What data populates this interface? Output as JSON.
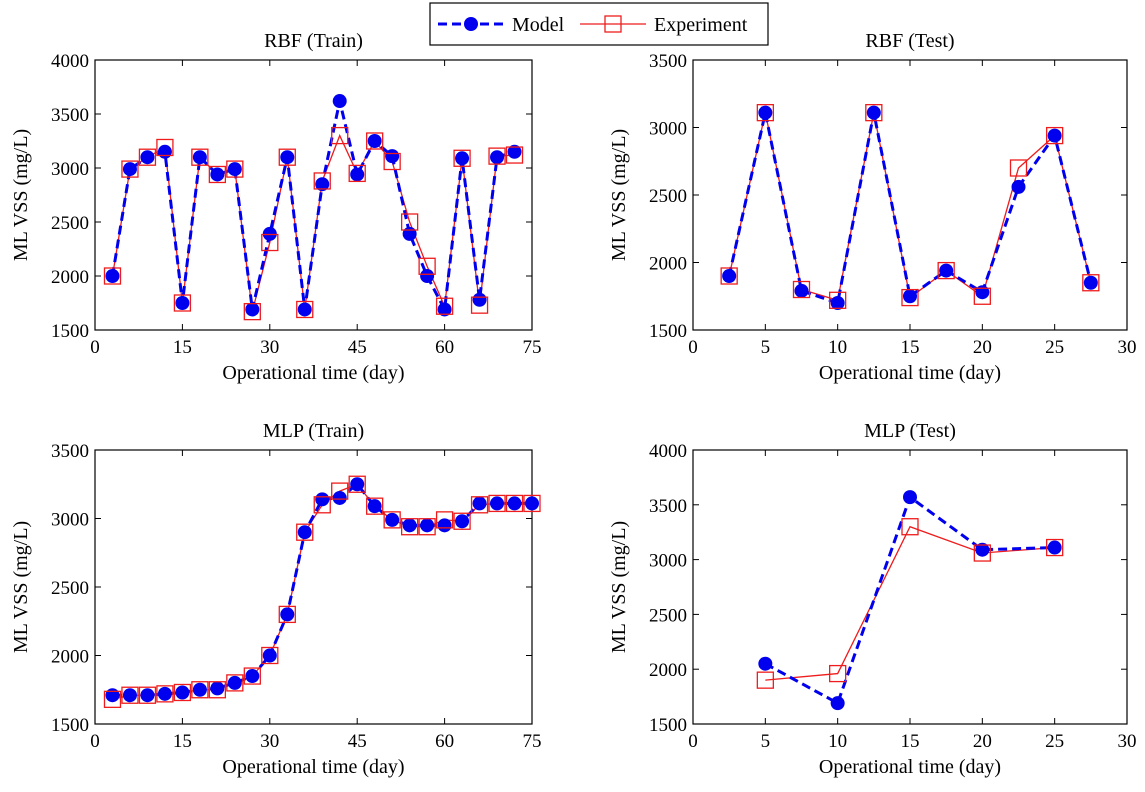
{
  "legend": {
    "entries": [
      {
        "label": "Model",
        "color": "#0000ee",
        "marker": "filled-circle",
        "line": "dashed"
      },
      {
        "label": "Experiment",
        "color": "#ee1c1c",
        "marker": "open-square",
        "line": "solid"
      }
    ]
  },
  "chart_data": [
    {
      "type": "line",
      "title": "RBF (Train)",
      "xlabel": "Operational time (day)",
      "ylabel": "ML VSS (mg/L)",
      "xlim": [
        0,
        75
      ],
      "ylim": [
        1500,
        4000
      ],
      "xticks": [
        0,
        15,
        30,
        45,
        60,
        75
      ],
      "yticks": [
        1500,
        2000,
        2500,
        3000,
        3500,
        4000
      ],
      "grid": false,
      "x": [
        3,
        6,
        9,
        12,
        15,
        18,
        21,
        24,
        27,
        30,
        33,
        36,
        39,
        42,
        45,
        48,
        51,
        54,
        57,
        60,
        63,
        66,
        69,
        72
      ],
      "series": [
        {
          "name": "Model",
          "values": [
            2000,
            2990,
            3100,
            3150,
            1750,
            3100,
            2940,
            2990,
            1690,
            2390,
            3100,
            1690,
            2850,
            3620,
            2940,
            3250,
            3110,
            2390,
            2000,
            1690,
            3090,
            1780,
            3100,
            3150
          ]
        },
        {
          "name": "Experiment",
          "values": [
            2000,
            2990,
            3100,
            3190,
            1750,
            3100,
            2940,
            2990,
            1670,
            2310,
            3100,
            1690,
            2880,
            3300,
            2950,
            3250,
            3060,
            2500,
            2090,
            1720,
            3090,
            1730,
            3110,
            3120
          ]
        }
      ]
    },
    {
      "type": "line",
      "title": "RBF (Test)",
      "xlabel": "Operational time (day)",
      "ylabel": "ML VSS (mg/L)",
      "xlim": [
        0,
        30
      ],
      "ylim": [
        1500,
        3500
      ],
      "xticks": [
        0,
        5,
        10,
        15,
        20,
        25,
        30
      ],
      "yticks": [
        1500,
        2000,
        2500,
        3000,
        3500
      ],
      "grid": false,
      "x": [
        2.5,
        5,
        7.5,
        10,
        12.5,
        15,
        17.5,
        20,
        22.5,
        25,
        27.5
      ],
      "series": [
        {
          "name": "Model",
          "values": [
            1900,
            3110,
            1790,
            1700,
            3110,
            1750,
            1940,
            1780,
            2560,
            2940,
            1850
          ]
        },
        {
          "name": "Experiment",
          "values": [
            1900,
            3110,
            1800,
            1720,
            3110,
            1740,
            1940,
            1750,
            2700,
            2940,
            1850
          ]
        }
      ]
    },
    {
      "type": "line",
      "title": "MLP (Train)",
      "xlabel": "Operational time (day)",
      "ylabel": "ML VSS (mg/L)",
      "xlim": [
        0,
        75
      ],
      "ylim": [
        1500,
        3500
      ],
      "xticks": [
        0,
        15,
        30,
        45,
        60,
        75
      ],
      "yticks": [
        1500,
        2000,
        2500,
        3000,
        3500
      ],
      "grid": false,
      "x": [
        3,
        6,
        9,
        12,
        15,
        18,
        21,
        24,
        27,
        30,
        33,
        36,
        39,
        42,
        45,
        48,
        51,
        54,
        57,
        60,
        63,
        66,
        69,
        72,
        75
      ],
      "series": [
        {
          "name": "Model",
          "values": [
            1710,
            1710,
            1710,
            1720,
            1730,
            1750,
            1760,
            1800,
            1850,
            2000,
            2300,
            2900,
            3140,
            3150,
            3250,
            3090,
            2990,
            2950,
            2950,
            2950,
            2980,
            3110,
            3110,
            3110,
            3110
          ]
        },
        {
          "name": "Experiment",
          "values": [
            1680,
            1710,
            1710,
            1720,
            1730,
            1750,
            1750,
            1800,
            1850,
            2000,
            2300,
            2900,
            3100,
            3200,
            3250,
            3090,
            2990,
            2940,
            2940,
            2990,
            2980,
            3100,
            3110,
            3110,
            3110
          ]
        }
      ]
    },
    {
      "type": "line",
      "title": "MLP (Test)",
      "xlabel": "Operational time (day)",
      "ylabel": "ML VSS (mg/L)",
      "xlim": [
        0,
        30
      ],
      "ylim": [
        1500,
        4000
      ],
      "xticks": [
        0,
        5,
        10,
        15,
        20,
        25,
        30
      ],
      "yticks": [
        1500,
        2000,
        2500,
        3000,
        3500,
        4000
      ],
      "grid": false,
      "x": [
        5,
        10,
        15,
        20,
        25
      ],
      "series": [
        {
          "name": "Model",
          "values": [
            2050,
            1690,
            3570,
            3090,
            3110
          ]
        },
        {
          "name": "Experiment",
          "values": [
            1900,
            1960,
            3300,
            3060,
            3110
          ]
        }
      ]
    }
  ]
}
